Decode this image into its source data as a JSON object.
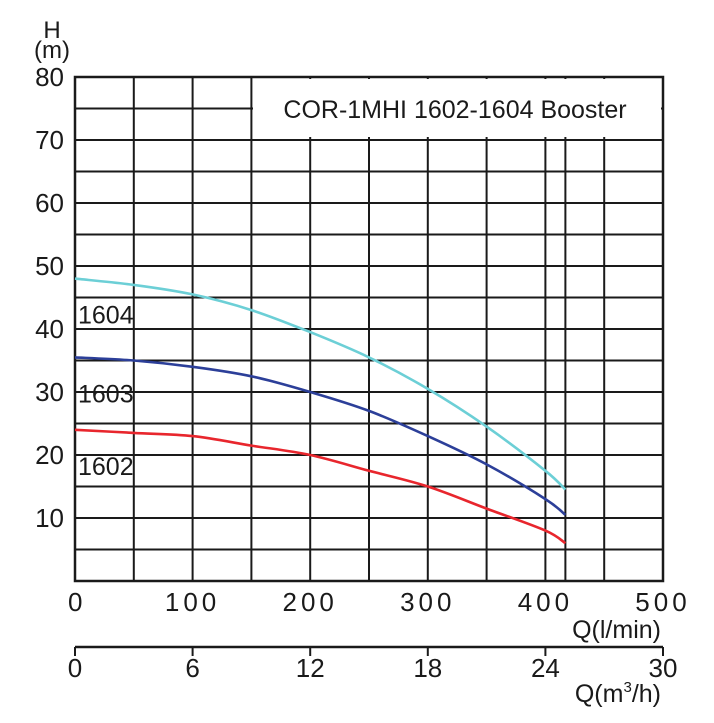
{
  "chart_data": {
    "type": "line",
    "title": "COR-1MHI 1602-1604 Booster",
    "ylabel": "H",
    "yunit": "(m)",
    "xlabel": "Q(l/min)",
    "x2label_prefix": "Q(m",
    "x2label_sup": "3",
    "x2label_suffix": "/h)",
    "xlim": [
      0,
      500
    ],
    "ylim": [
      0,
      80
    ],
    "x2lim": [
      0,
      30
    ],
    "yticks": [
      10,
      20,
      30,
      40,
      50,
      60,
      70,
      80
    ],
    "xticks": [
      0,
      100,
      200,
      300,
      400,
      500
    ],
    "x2ticks": [
      0,
      6,
      12,
      18,
      24,
      30
    ],
    "x_gridlines": [
      0,
      50,
      100,
      150,
      200,
      250,
      300,
      350,
      400,
      417,
      450,
      500
    ],
    "y_gridlines": [
      0,
      5,
      10,
      15,
      20,
      25,
      30,
      35,
      40,
      45,
      50,
      55,
      60,
      65,
      70,
      75,
      80
    ],
    "grid": true,
    "series": [
      {
        "name": "1604",
        "color": "#6ccfd6",
        "x": [
          0,
          50,
          100,
          150,
          200,
          250,
          300,
          350,
          400,
          417
        ],
        "y": [
          48,
          47,
          45.5,
          43,
          39.5,
          35.5,
          30.5,
          24.5,
          17.5,
          14.5
        ]
      },
      {
        "name": "1603",
        "color": "#2c3f99",
        "x": [
          0,
          50,
          100,
          150,
          200,
          250,
          300,
          350,
          400,
          417
        ],
        "y": [
          35.5,
          35,
          34,
          32.5,
          30,
          27,
          23,
          18.5,
          13,
          10.5
        ]
      },
      {
        "name": "1602",
        "color": "#e8262d",
        "x": [
          0,
          50,
          100,
          150,
          200,
          250,
          300,
          350,
          400,
          417
        ],
        "y": [
          24,
          23.5,
          23,
          21.5,
          20,
          17.5,
          15,
          11.5,
          8,
          6
        ]
      }
    ]
  }
}
